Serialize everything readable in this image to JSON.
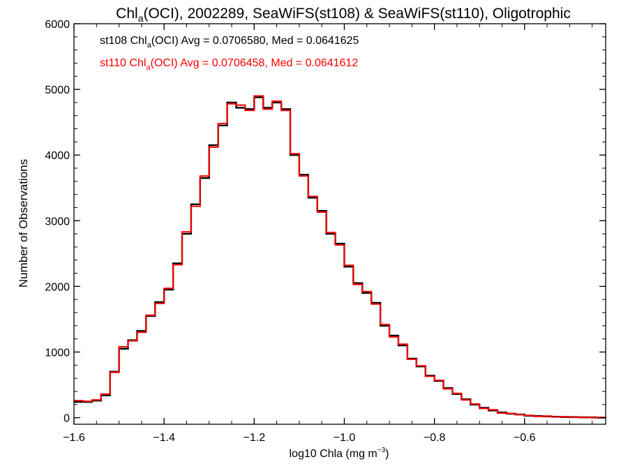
{
  "chart_data": {
    "type": "line",
    "title": {
      "pre": "Chl",
      "sub": "a",
      "post": "(OCI), 2002289, SeaWiFS(st108) & SeaWiFS(st110), Oligotrophic"
    },
    "xlabel": {
      "pre": "log10 Chla (mg m",
      "sup": "−3",
      "post": ")"
    },
    "ylabel": "Number of Observations",
    "xlim": [
      -1.6,
      -0.42
    ],
    "ylim": [
      -100,
      6000
    ],
    "x_ticks": [
      -1.6,
      -1.4,
      -1.2,
      -1.0,
      -0.8,
      -0.6
    ],
    "x_tick_labels": [
      "−1.6",
      "−1.4",
      "−1.2",
      "−1.0",
      "−0.8",
      "−0.6"
    ],
    "y_ticks": [
      0,
      1000,
      2000,
      3000,
      4000,
      5000,
      6000
    ],
    "y_tick_labels": [
      "0",
      "1000",
      "2000",
      "3000",
      "4000",
      "5000",
      "6000"
    ],
    "grid": false,
    "legend_position": "top-left",
    "annotations": [
      {
        "name": "st108",
        "color": "#000000",
        "pre": "st108 Chl",
        "sub": "a",
        "post": "(OCI) Avg = 0.0706580, Med = 0.0641625"
      },
      {
        "name": "st110",
        "color": "#ff0000",
        "pre": "st110 Chl",
        "sub": "a",
        "post": "(OCI) Avg = 0.0706458, Med = 0.0641612"
      }
    ],
    "x": [
      -1.6,
      -1.58,
      -1.56,
      -1.54,
      -1.52,
      -1.5,
      -1.48,
      -1.46,
      -1.44,
      -1.42,
      -1.4,
      -1.38,
      -1.36,
      -1.34,
      -1.32,
      -1.3,
      -1.28,
      -1.26,
      -1.24,
      -1.22,
      -1.2,
      -1.18,
      -1.16,
      -1.14,
      -1.12,
      -1.1,
      -1.08,
      -1.06,
      -1.04,
      -1.02,
      -1.0,
      -0.98,
      -0.96,
      -0.94,
      -0.92,
      -0.9,
      -0.88,
      -0.86,
      -0.84,
      -0.82,
      -0.8,
      -0.78,
      -0.76,
      -0.74,
      -0.72,
      -0.7,
      -0.68,
      -0.66,
      -0.64,
      -0.62,
      -0.6,
      -0.58,
      -0.56,
      -0.54,
      -0.52,
      -0.5,
      -0.48,
      -0.46,
      -0.44,
      -0.42
    ],
    "series": [
      {
        "name": "st108",
        "color": "#000000",
        "values": [
          240,
          240,
          260,
          340,
          700,
          1050,
          1180,
          1320,
          1550,
          1760,
          1950,
          2350,
          2800,
          3250,
          3650,
          4150,
          4450,
          4800,
          4720,
          4700,
          4880,
          4720,
          4800,
          4700,
          4000,
          3700,
          3350,
          3150,
          2800,
          2650,
          2300,
          2050,
          1900,
          1750,
          1400,
          1250,
          1100,
          900,
          780,
          640,
          560,
          450,
          360,
          280,
          200,
          150,
          110,
          80,
          60,
          50,
          30,
          25,
          20,
          15,
          10,
          10,
          5,
          5,
          0,
          0
        ]
      },
      {
        "name": "st110",
        "color": "#ff0000",
        "values": [
          260,
          250,
          270,
          360,
          690,
          1080,
          1170,
          1300,
          1560,
          1740,
          1970,
          2330,
          2830,
          3220,
          3680,
          4120,
          4480,
          4780,
          4760,
          4680,
          4900,
          4700,
          4820,
          4680,
          4020,
          3680,
          3370,
          3130,
          2820,
          2630,
          2320,
          2030,
          1920,
          1730,
          1420,
          1230,
          1120,
          890,
          790,
          630,
          570,
          440,
          370,
          270,
          210,
          140,
          120,
          70,
          65,
          45,
          35,
          20,
          25,
          10,
          15,
          5,
          10,
          0,
          5,
          0
        ]
      }
    ]
  }
}
